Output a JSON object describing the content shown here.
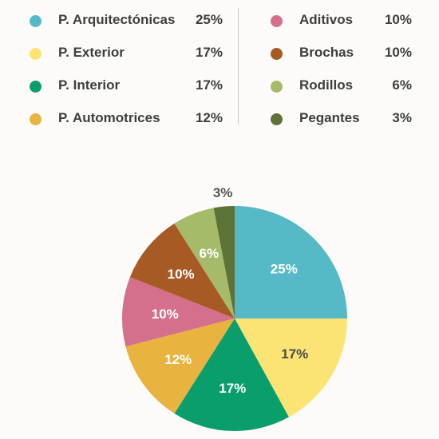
{
  "legend": {
    "left": [
      {
        "label": "P. Arquitectónicas",
        "percent": "25%",
        "color": "#55b9c7"
      },
      {
        "label": "P. Exterior",
        "percent": "17%",
        "color": "#fce474"
      },
      {
        "label": "P. Interior",
        "percent": "17%",
        "color": "#0a9e6c"
      },
      {
        "label": "P. Automotrices",
        "percent": "12%",
        "color": "#e8b33e"
      }
    ],
    "right": [
      {
        "label": "Aditivos",
        "percent": "10%",
        "color": "#d4708c"
      },
      {
        "label": "Brochas",
        "percent": "10%",
        "color": "#a75a24"
      },
      {
        "label": "Rodillos",
        "percent": "6%",
        "color": "#a5bb6a"
      },
      {
        "label": "Pegantes",
        "percent": "3%",
        "color": "#5e7337"
      }
    ]
  },
  "chart_data": {
    "type": "pie",
    "categories": [
      "P. Arquitectónicas",
      "P. Exterior",
      "P. Interior",
      "P. Automotrices",
      "Aditivos",
      "Brochas",
      "Rodillos",
      "Pegantes"
    ],
    "values": [
      25,
      17,
      17,
      12,
      10,
      10,
      6,
      3
    ],
    "labels": [
      "25%",
      "17%",
      "17%",
      "12%",
      "10%",
      "10%",
      "6%",
      "3%"
    ],
    "colors": [
      "#55b9c7",
      "#fce474",
      "#0a9e6c",
      "#e8b33e",
      "#d4708c",
      "#a75a24",
      "#a5bb6a",
      "#5e7337"
    ],
    "label_colors": [
      "#ffffff",
      "#4a4a4a",
      "#ffffff",
      "#ffffff",
      "#ffffff",
      "#ffffff",
      "#ffffff",
      "#555555"
    ],
    "start": "12 o'clock",
    "direction": "clockwise",
    "legend_position": "top"
  }
}
